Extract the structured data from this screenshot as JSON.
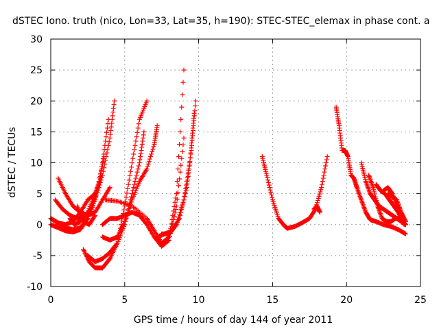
{
  "chart_data": {
    "type": "scatter",
    "title": "dSTEC Iono. truth (nico, Lon=33, Lat=35, h=190): STEC-STEC_elemax in phase cont. a",
    "xlabel": "GPS time / hours of day 144 of year 2011",
    "ylabel": "dSTEC  / TECUs",
    "xlim": [
      0,
      25
    ],
    "ylim": [
      -10,
      30
    ],
    "x_ticks": [
      0,
      5,
      10,
      15,
      20,
      25
    ],
    "y_ticks": [
      -10,
      -5,
      0,
      5,
      10,
      15,
      20,
      25,
      30
    ],
    "x_tick_labels": [
      "0",
      "5",
      "10",
      "15",
      "20",
      "25"
    ],
    "y_tick_labels": [
      "-10",
      "-5",
      "0",
      "5",
      "10",
      "15",
      "20",
      "25",
      "30"
    ],
    "grid": true,
    "marker": "+",
    "color": "#ff0000",
    "series": [
      {
        "x": [
          0.0,
          0.5,
          1.0,
          1.5,
          2.0,
          2.5,
          3.0,
          3.5,
          4.0,
          4.3
        ],
        "y": [
          0.0,
          -0.5,
          -1.0,
          -1.2,
          -0.8,
          1.0,
          4.0,
          8.0,
          14.0,
          20.0
        ]
      },
      {
        "x": [
          0.0,
          0.5,
          1.0,
          1.5,
          2.0,
          2.5,
          3.0,
          3.5,
          3.9
        ],
        "y": [
          1.0,
          0.2,
          -0.5,
          -0.8,
          -0.5,
          1.0,
          4.0,
          10.0,
          17.0
        ]
      },
      {
        "x": [
          0.3,
          0.8,
          1.3,
          1.8,
          2.3,
          2.8,
          3.3,
          3.6
        ],
        "y": [
          4.0,
          2.5,
          1.5,
          1.0,
          1.2,
          3.0,
          7.0,
          11.0
        ]
      },
      {
        "x": [
          0.5,
          1.0,
          1.5,
          2.0,
          2.5,
          3.0,
          3.5,
          4.0
        ],
        "y": [
          7.5,
          5.0,
          3.0,
          2.0,
          1.5,
          2.0,
          4.0,
          6.0
        ]
      },
      {
        "x": [
          0.0,
          0.5,
          1.0,
          1.5,
          2.0,
          2.5,
          3.0
        ],
        "y": [
          1.0,
          0.3,
          0.0,
          0.5,
          2.0,
          4.0,
          5.0
        ]
      },
      {
        "x": [
          1.3,
          1.6,
          2.0,
          2.5,
          3.0,
          3.3
        ],
        "y": [
          1.0,
          0.0,
          0.5,
          2.0,
          5.0,
          7.0
        ]
      },
      {
        "x": [
          1.8,
          2.2,
          2.6,
          3.0
        ],
        "y": [
          3.0,
          0.5,
          0.0,
          1.5
        ]
      },
      {
        "x": [
          2.2,
          2.6,
          3.0,
          3.5,
          4.0,
          4.5,
          5.0,
          5.5,
          6.0,
          6.5
        ],
        "y": [
          -4.0,
          -6.0,
          -7.0,
          -7.0,
          -5.5,
          -3.0,
          3.0,
          10.0,
          17.0,
          20.0
        ]
      },
      {
        "x": [
          2.5,
          3.0,
          3.5,
          4.0,
          4.5,
          5.0,
          5.5,
          6.0,
          6.3
        ],
        "y": [
          -5.0,
          -6.0,
          -5.5,
          -4.5,
          -3.0,
          0.0,
          5.0,
          10.0,
          15.0
        ]
      },
      {
        "x": [
          3.5,
          4.0,
          4.5,
          5.0,
          5.5,
          6.0,
          6.5,
          7.0,
          7.2
        ],
        "y": [
          -2.0,
          -2.5,
          -2.0,
          0.5,
          4.0,
          7.0,
          9.0,
          13.0,
          16.0
        ]
      },
      {
        "x": [
          3.5,
          4.0,
          4.5,
          5.0,
          5.5,
          6.0,
          6.5,
          7.0,
          7.5,
          8.0,
          8.5,
          9.0
        ],
        "y": [
          0.0,
          1.0,
          1.0,
          1.5,
          2.0,
          1.5,
          0.0,
          -2.0,
          -3.5,
          -2.5,
          3.0,
          14.0
        ]
      },
      {
        "x": [
          3.7,
          4.5,
          5.5,
          6.5,
          7.0,
          7.5,
          8.0,
          8.5,
          9.0
        ],
        "y": [
          4.0,
          3.8,
          3.0,
          1.0,
          -1.0,
          -3.0,
          -2.0,
          5.0,
          25.0
        ]
      },
      {
        "x": [
          7.2,
          7.7,
          8.2,
          8.7,
          9.2,
          9.5,
          9.8
        ],
        "y": [
          -2.0,
          -1.5,
          -1.0,
          1.0,
          6.0,
          12.0,
          20.0
        ]
      },
      {
        "x": [
          7.5,
          8.0,
          8.5,
          9.0,
          9.4,
          9.7
        ],
        "y": [
          -1.5,
          -1.5,
          0.0,
          4.0,
          10.0,
          18.0
        ]
      },
      {
        "x": [
          14.3,
          14.6,
          15.0,
          15.4,
          15.8,
          16.0,
          16.5,
          17.0,
          17.5,
          17.9,
          18.3,
          18.7
        ],
        "y": [
          11.0,
          8.0,
          4.0,
          1.0,
          -0.2,
          -0.6,
          -0.3,
          0.3,
          1.0,
          2.5,
          6.0,
          11.0
        ]
      },
      {
        "x": [
          17.8,
          18.0,
          18.2
        ],
        "y": [
          2.5,
          3.0,
          2.0
        ]
      },
      {
        "x": [
          19.3,
          19.5,
          19.7,
          19.9,
          20.1,
          20.3,
          20.5,
          20.7,
          21.0,
          21.3,
          21.6,
          22.0,
          22.5,
          23.0,
          23.5,
          24.0
        ],
        "y": [
          19.0,
          16.0,
          12.0,
          12.0,
          11.0,
          8.0,
          7.5,
          6.0,
          4.0,
          2.0,
          0.8,
          0.5,
          0.0,
          -0.3,
          -0.8,
          -1.5
        ]
      },
      {
        "x": [
          21.0,
          21.3,
          21.6,
          21.9,
          22.2,
          22.5,
          22.8,
          23.1,
          23.4,
          23.7,
          24.0
        ],
        "y": [
          10.0,
          7.0,
          5.0,
          4.0,
          3.0,
          2.5,
          2.0,
          1.5,
          1.0,
          0.5,
          0.0
        ]
      },
      {
        "x": [
          21.5,
          21.8,
          22.1,
          22.4,
          22.7,
          23.0,
          23.3,
          23.6,
          23.9
        ],
        "y": [
          8.0,
          6.0,
          3.0,
          1.0,
          0.5,
          0.5,
          1.0,
          1.0,
          0.5
        ]
      },
      {
        "x": [
          22.0,
          22.3,
          22.6,
          22.9,
          23.2,
          23.5,
          23.8,
          24.0
        ],
        "y": [
          6.5,
          5.5,
          5.0,
          4.0,
          3.0,
          2.0,
          0.5,
          0.0
        ]
      },
      {
        "x": [
          22.5,
          22.8,
          23.1,
          23.4,
          23.7,
          23.9
        ],
        "y": [
          5.5,
          6.0,
          5.0,
          3.0,
          1.0,
          0.0
        ]
      },
      {
        "x": [
          22.8,
          23.1,
          23.4,
          23.7,
          24.0
        ],
        "y": [
          5.0,
          4.5,
          4.0,
          2.0,
          0.5
        ]
      }
    ]
  }
}
